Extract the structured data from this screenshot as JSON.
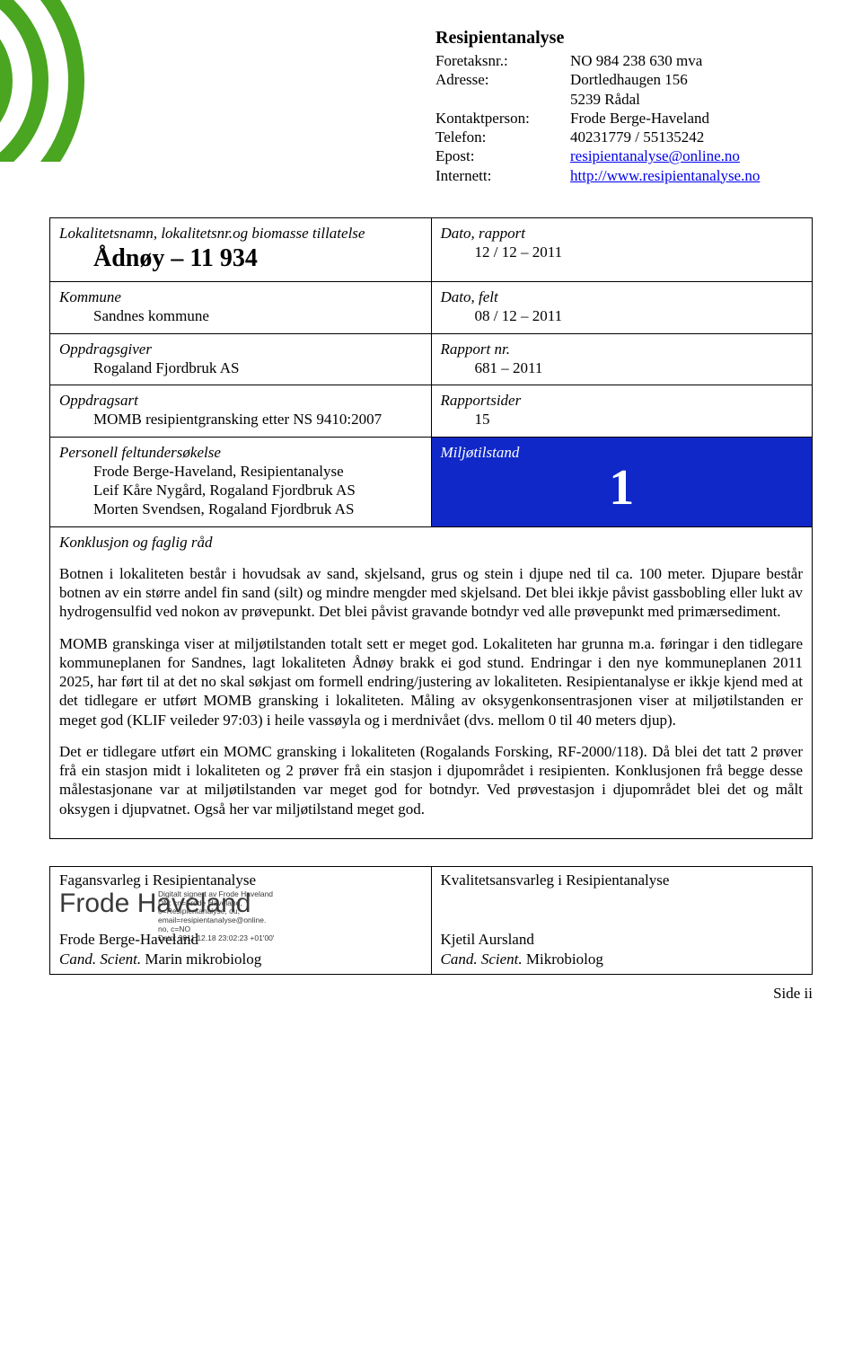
{
  "header": {
    "title": "Resipientanalyse",
    "rows": [
      {
        "label": "Foretaksnr.:",
        "value": "NO 984 238 630 mva"
      },
      {
        "label": "Adresse:",
        "value": "Dortledhaugen 156"
      },
      {
        "label": "",
        "value": "5239 Rådal"
      },
      {
        "label": "Kontaktperson:",
        "value": "Frode Berge-Haveland"
      },
      {
        "label": "Telefon:",
        "value": "40231779 / 55135242"
      },
      {
        "label": "Epost:",
        "value": "resipientanalyse@online.no",
        "link": true
      },
      {
        "label": "Internett:",
        "value": "http://www.resipientanalyse.no",
        "link": true
      }
    ]
  },
  "grid": {
    "r1l_label": "Lokalitetsnamn, lokalitetsnr.og biomasse tillatelse",
    "r1l_value": "Ådnøy – 11 934",
    "r1r_label": "Dato, rapport",
    "r1r_value": "12 / 12 – 2011",
    "r2l_label": "Kommune",
    "r2l_value": "Sandnes kommune",
    "r2r_label": "Dato, felt",
    "r2r_value": "08 / 12 – 2011",
    "r3l_label": "Oppdragsgiver",
    "r3l_value": "Rogaland Fjordbruk AS",
    "r3r_label": "Rapport nr.",
    "r3r_value": "681 – 2011",
    "r4l_label": "Oppdragsart",
    "r4l_value": "MOMB resipientgransking etter NS 9410:2007",
    "r4r_label": "Rapportsider",
    "r4r_value": "15",
    "r5l_label": "Personell feltundersøkelse",
    "r5l_lines": [
      "Frode Berge-Haveland, Resipientanalyse",
      "Leif Kåre Nygård, Rogaland Fjordbruk AS",
      "Morten Svendsen, Rogaland Fjordbruk AS"
    ],
    "r5r_label": "Miljøtilstand",
    "r5r_value": "1",
    "conclusion_label": "Konklusjon og faglig råd",
    "paragraphs": [
      "Botnen i lokaliteten består i hovudsak av sand, skjelsand, grus og stein i djupe ned til ca. 100 meter. Djupare består botnen av ein større andel fin sand (silt) og mindre mengder med skjelsand. Det blei ikkje påvist gassbobling eller lukt av hydrogensulfid ved nokon av prøvepunkt. Det blei påvist gravande botndyr ved alle prøvepunkt med primærsediment.",
      "MOMB granskinga viser at miljøtilstanden totalt sett er meget god. Lokaliteten har grunna m.a. føringar i den tidlegare kommuneplanen for Sandnes, lagt lokaliteten Ådnøy brakk ei god stund. Endringar i den nye kommuneplanen 2011 2025, har ført til at det no skal søkjast om formell endring/justering av lokaliteten. Resipientanalyse er ikkje kjend med at det tidlegare er utført MOMB gransking i lokaliteten. Måling av oksygenkonsentrasjonen viser at miljøtilstanden er meget god (KLIF veileder 97:03) i heile vassøyla og i merdnivået (dvs. mellom 0 til 40 meters djup).",
      "Det er tidlegare utført ein MOMC gransking i lokaliteten (Rogalands Forsking, RF-2000/118). Då blei det tatt 2 prøver frå ein stasjon midt i lokaliteten og 2 prøver frå ein stasjon i djupområdet i resipienten. Konklusjonen frå begge desse målestasjonane var at miljøtilstanden var meget god for botndyr. Ved prøvestasjon i djupområdet blei det og målt oksygen i djupvatnet. Også her var miljøtilstand meget god."
    ]
  },
  "sign": {
    "left_title": "Fagansvarleg i Resipientanalyse",
    "sig_name": "Frode Haveland",
    "sig_meta": [
      "Digitalt signert av Frode Haveland",
      "DN: cn=Frode Haveland,",
      "o=Resipientanalyse, ou,",
      "email=resipientanalyse@online.",
      "no, c=NO",
      "Dato: 2011.12.18 23:02:23 +01'00'"
    ],
    "left_name": "Frode Berge-Haveland",
    "left_role": "Cand. Scient. Marin mikrobiolog",
    "right_title": "Kvalitetsansvarleg i Resipientanalyse",
    "right_name": "Kjetil Aursland",
    "right_role": "Cand. Scient. Mikrobiolog"
  },
  "page": "Side ii",
  "colors": {
    "accent": "#1028c8",
    "link": "#0000ee",
    "arc": "#4aa521"
  }
}
